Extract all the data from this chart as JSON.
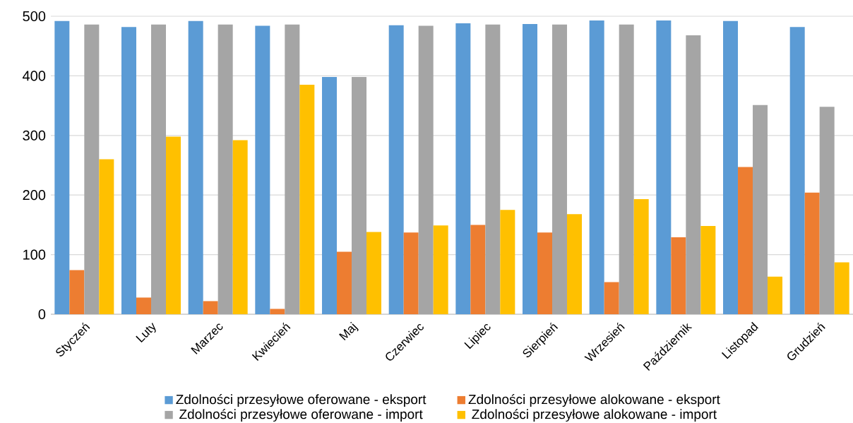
{
  "chart_data": {
    "type": "bar",
    "categories": [
      "Styczeń",
      "Luty",
      "Marzec",
      "Kwiecień",
      "Maj",
      "Czerwiec",
      "Lipiec",
      "Sierpień",
      "Wrzesień",
      "Październik",
      "Listopad",
      "Grudzień"
    ],
    "series": [
      {
        "name": "Zdolności przesyłowe oferowane - eksport",
        "color": "#5b9bd5",
        "values": [
          492,
          482,
          492,
          484,
          398,
          485,
          488,
          487,
          493,
          493,
          492,
          482
        ]
      },
      {
        "name": "Zdolności przesyłowe alokowane - eksport",
        "color": "#ed7d31",
        "values": [
          74,
          28,
          22,
          9,
          105,
          137,
          150,
          137,
          54,
          129,
          247,
          204
        ]
      },
      {
        "name": "Zdolności przesyłowe oferowane - import",
        "color": "#a5a5a5",
        "values": [
          486,
          486,
          486,
          486,
          398,
          484,
          486,
          486,
          486,
          468,
          351,
          348
        ]
      },
      {
        "name": "Zdolności przesyłowe alokowane - import",
        "color": "#ffc000",
        "values": [
          260,
          298,
          292,
          385,
          138,
          149,
          175,
          168,
          193,
          148,
          63,
          87
        ]
      }
    ],
    "ylim": [
      0,
      500
    ],
    "yticks": [
      0,
      100,
      200,
      300,
      400,
      500
    ],
    "grid": "y",
    "legend": "bottom"
  }
}
